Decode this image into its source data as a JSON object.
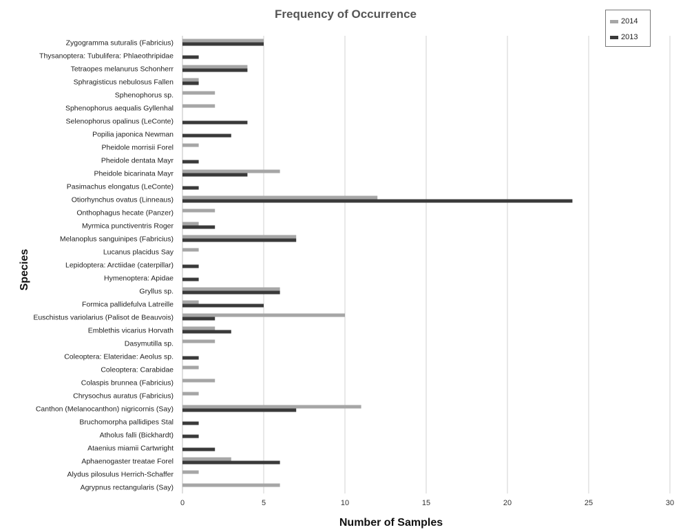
{
  "chart_data": {
    "type": "bar",
    "orientation": "horizontal",
    "title": "Frequency of Occurrence",
    "xlabel": "Number of Samples",
    "ylabel": "Species",
    "xlim": [
      0,
      30
    ],
    "xticks": [
      0,
      5,
      10,
      15,
      20,
      25,
      30
    ],
    "grid": "vertical",
    "legend_position": "top-right",
    "categories": [
      "Zygogramma  suturalis (Fabricius)",
      "Thysanoptera: Tubulifera: Phlaeothripidae",
      "Tetraopes melanurus Schonherr",
      "Sphragisticus nebulosus Fallen",
      "Sphenophorus sp.",
      "Sphenophorus aequalis Gyllenhal",
      "Selenophorus opalinus (LeConte)",
      "Popilia japonica Newman",
      "Pheidole morrisii Forel",
      "Pheidole dentata Mayr",
      "Pheidole bicarinata Mayr",
      "Pasimachus elongatus (LeConte)",
      "Otiorhynchus ovatus (Linneaus)",
      "Onthophagus hecate (Panzer)",
      "Myrmica punctiventris Roger",
      "Melanoplus sanguinipes (Fabricius)",
      "Lucanus placidus Say",
      "Lepidoptera: Arctiidae (caterpillar)",
      "Hymenoptera: Apidae",
      "Gryllus sp.",
      "Formica pallidefulva Latreille",
      "Euschistus variolarius (Palisot de Beauvois)",
      "Emblethis vicarius  Horvath",
      "Dasymutilla sp.",
      "Coleoptera: Elateridae: Aeolus sp.",
      "Coleoptera: Carabidae",
      "Colaspis brunnea (Fabricius)",
      "Chrysochus auratus (Fabricius)",
      "Canthon (Melanocanthon) nigricornis (Say)",
      "Bruchomorpha pallidipes Stal",
      "Atholus falli (Bickhardt)",
      "Ataenius miamii  Cartwright",
      "Aphaenogaster treatae Forel",
      "Alydus pilosulus Herrich-Schaffer",
      "Agrypnus rectangularis (Say)"
    ],
    "series": [
      {
        "name": "2014",
        "color": "#a6a6a6",
        "values": [
          5,
          0,
          4,
          1,
          2,
          2,
          0,
          0,
          1,
          0,
          6,
          0,
          12,
          2,
          1,
          7,
          1,
          0,
          0,
          6,
          1,
          10,
          2,
          2,
          0,
          1,
          2,
          1,
          11,
          0,
          0,
          0,
          3,
          1,
          6
        ]
      },
      {
        "name": "2013",
        "color": "#3a3a3a",
        "values": [
          5,
          1,
          4,
          1,
          0,
          0,
          4,
          3,
          0,
          1,
          4,
          1,
          24,
          0,
          2,
          7,
          0,
          1,
          1,
          6,
          5,
          2,
          3,
          0,
          1,
          0,
          0,
          0,
          7,
          1,
          1,
          2,
          6,
          0,
          0
        ]
      }
    ]
  }
}
